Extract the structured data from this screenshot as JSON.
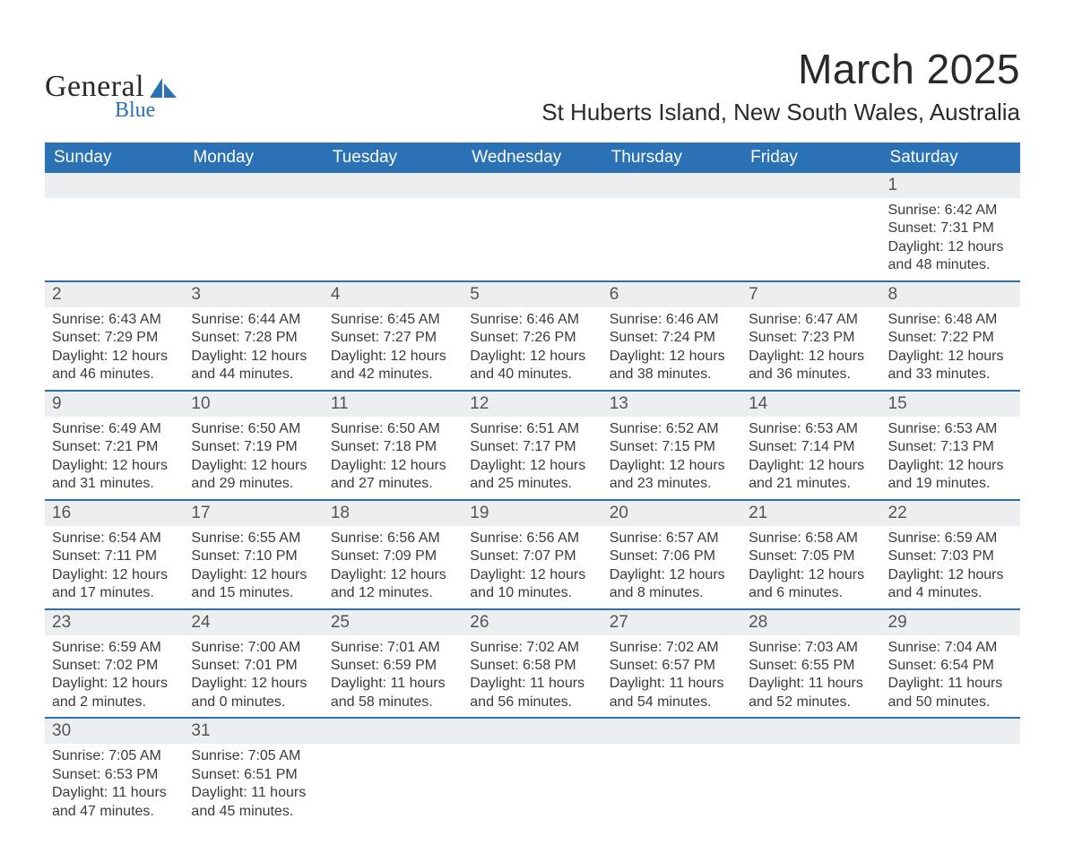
{
  "brand": {
    "top": "General",
    "bottom": "Blue",
    "accent_color": "#2a72b5"
  },
  "title": {
    "month_year": "March 2025",
    "location": "St Huberts Island, New South Wales, Australia"
  },
  "style": {
    "header_bg": "#2a72b5",
    "header_fg": "#ffffff",
    "daynum_bg": "#eceeef",
    "week_divider": "#2a72b5",
    "text_color": "#3b3b3b",
    "page_bg": "#ffffff",
    "header_fontsize": 19,
    "daynum_fontsize": 19,
    "body_fontsize": 16,
    "title_fontsize": 46,
    "location_fontsize": 26
  },
  "day_headers": [
    "Sunday",
    "Monday",
    "Tuesday",
    "Wednesday",
    "Thursday",
    "Friday",
    "Saturday"
  ],
  "labels": {
    "sunrise": "Sunrise: ",
    "sunset": "Sunset: ",
    "daylight": "Daylight: "
  },
  "weeks": [
    [
      null,
      null,
      null,
      null,
      null,
      null,
      {
        "d": 1,
        "sr": "6:42 AM",
        "ss": "7:31 PM",
        "dl": "12 hours and 48 minutes."
      }
    ],
    [
      {
        "d": 2,
        "sr": "6:43 AM",
        "ss": "7:29 PM",
        "dl": "12 hours and 46 minutes."
      },
      {
        "d": 3,
        "sr": "6:44 AM",
        "ss": "7:28 PM",
        "dl": "12 hours and 44 minutes."
      },
      {
        "d": 4,
        "sr": "6:45 AM",
        "ss": "7:27 PM",
        "dl": "12 hours and 42 minutes."
      },
      {
        "d": 5,
        "sr": "6:46 AM",
        "ss": "7:26 PM",
        "dl": "12 hours and 40 minutes."
      },
      {
        "d": 6,
        "sr": "6:46 AM",
        "ss": "7:24 PM",
        "dl": "12 hours and 38 minutes."
      },
      {
        "d": 7,
        "sr": "6:47 AM",
        "ss": "7:23 PM",
        "dl": "12 hours and 36 minutes."
      },
      {
        "d": 8,
        "sr": "6:48 AM",
        "ss": "7:22 PM",
        "dl": "12 hours and 33 minutes."
      }
    ],
    [
      {
        "d": 9,
        "sr": "6:49 AM",
        "ss": "7:21 PM",
        "dl": "12 hours and 31 minutes."
      },
      {
        "d": 10,
        "sr": "6:50 AM",
        "ss": "7:19 PM",
        "dl": "12 hours and 29 minutes."
      },
      {
        "d": 11,
        "sr": "6:50 AM",
        "ss": "7:18 PM",
        "dl": "12 hours and 27 minutes."
      },
      {
        "d": 12,
        "sr": "6:51 AM",
        "ss": "7:17 PM",
        "dl": "12 hours and 25 minutes."
      },
      {
        "d": 13,
        "sr": "6:52 AM",
        "ss": "7:15 PM",
        "dl": "12 hours and 23 minutes."
      },
      {
        "d": 14,
        "sr": "6:53 AM",
        "ss": "7:14 PM",
        "dl": "12 hours and 21 minutes."
      },
      {
        "d": 15,
        "sr": "6:53 AM",
        "ss": "7:13 PM",
        "dl": "12 hours and 19 minutes."
      }
    ],
    [
      {
        "d": 16,
        "sr": "6:54 AM",
        "ss": "7:11 PM",
        "dl": "12 hours and 17 minutes."
      },
      {
        "d": 17,
        "sr": "6:55 AM",
        "ss": "7:10 PM",
        "dl": "12 hours and 15 minutes."
      },
      {
        "d": 18,
        "sr": "6:56 AM",
        "ss": "7:09 PM",
        "dl": "12 hours and 12 minutes."
      },
      {
        "d": 19,
        "sr": "6:56 AM",
        "ss": "7:07 PM",
        "dl": "12 hours and 10 minutes."
      },
      {
        "d": 20,
        "sr": "6:57 AM",
        "ss": "7:06 PM",
        "dl": "12 hours and 8 minutes."
      },
      {
        "d": 21,
        "sr": "6:58 AM",
        "ss": "7:05 PM",
        "dl": "12 hours and 6 minutes."
      },
      {
        "d": 22,
        "sr": "6:59 AM",
        "ss": "7:03 PM",
        "dl": "12 hours and 4 minutes."
      }
    ],
    [
      {
        "d": 23,
        "sr": "6:59 AM",
        "ss": "7:02 PM",
        "dl": "12 hours and 2 minutes."
      },
      {
        "d": 24,
        "sr": "7:00 AM",
        "ss": "7:01 PM",
        "dl": "12 hours and 0 minutes."
      },
      {
        "d": 25,
        "sr": "7:01 AM",
        "ss": "6:59 PM",
        "dl": "11 hours and 58 minutes."
      },
      {
        "d": 26,
        "sr": "7:02 AM",
        "ss": "6:58 PM",
        "dl": "11 hours and 56 minutes."
      },
      {
        "d": 27,
        "sr": "7:02 AM",
        "ss": "6:57 PM",
        "dl": "11 hours and 54 minutes."
      },
      {
        "d": 28,
        "sr": "7:03 AM",
        "ss": "6:55 PM",
        "dl": "11 hours and 52 minutes."
      },
      {
        "d": 29,
        "sr": "7:04 AM",
        "ss": "6:54 PM",
        "dl": "11 hours and 50 minutes."
      }
    ],
    [
      {
        "d": 30,
        "sr": "7:05 AM",
        "ss": "6:53 PM",
        "dl": "11 hours and 47 minutes."
      },
      {
        "d": 31,
        "sr": "7:05 AM",
        "ss": "6:51 PM",
        "dl": "11 hours and 45 minutes."
      },
      null,
      null,
      null,
      null,
      null
    ]
  ]
}
